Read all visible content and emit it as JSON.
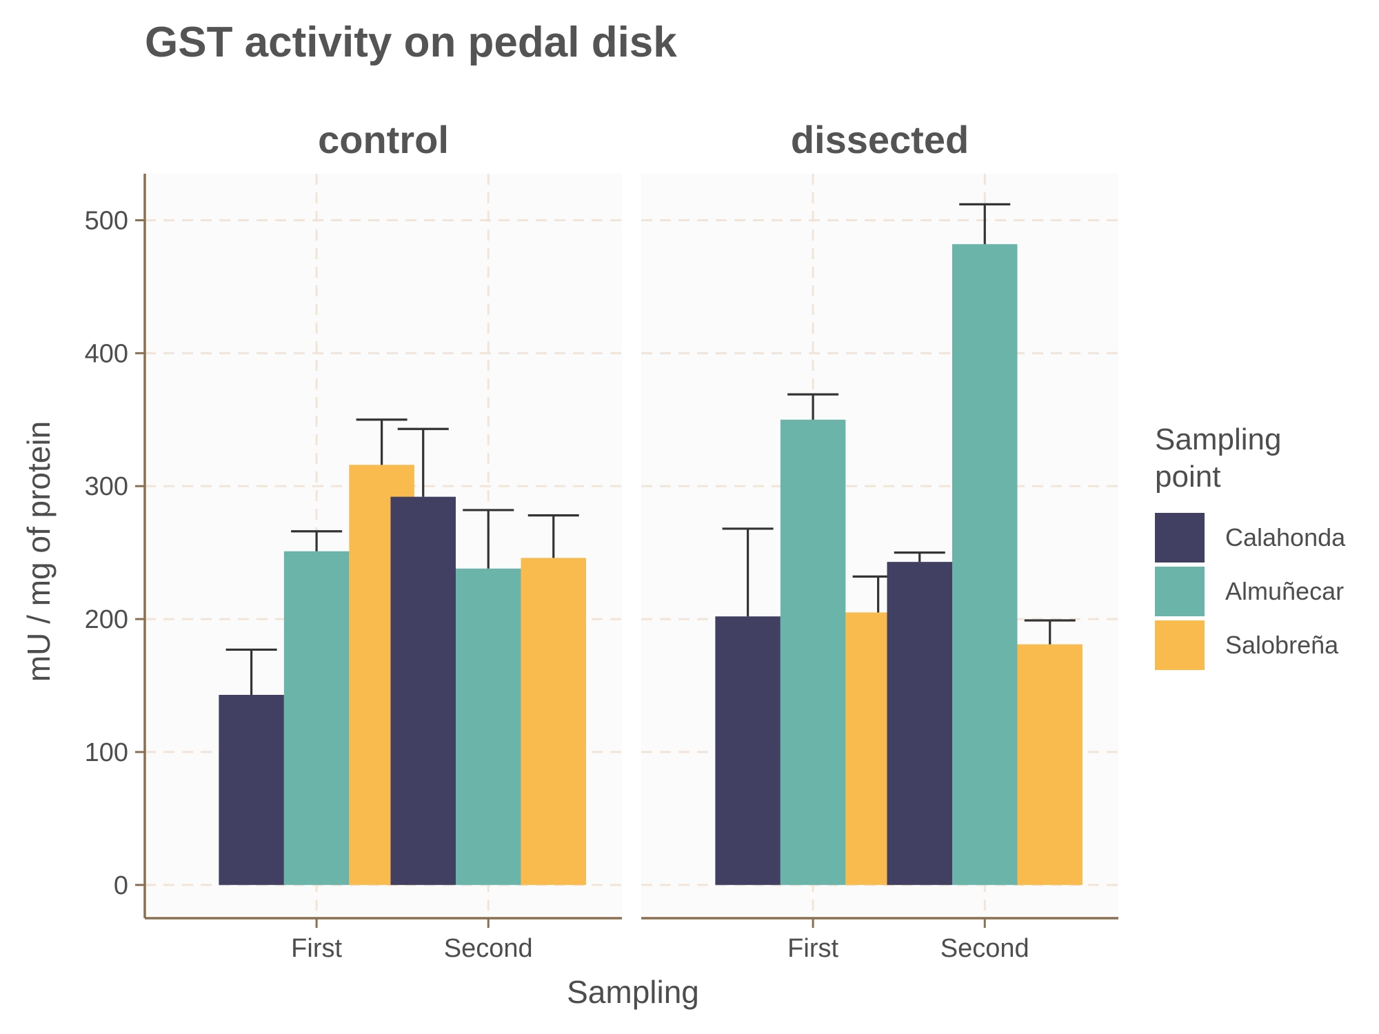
{
  "chart_data": {
    "type": "bar",
    "title": "GST activity on pedal disk",
    "xlabel": "Sampling",
    "ylabel": "mU / mg  of protein",
    "ylim": [
      -25,
      535
    ],
    "yticks": [
      0,
      100,
      200,
      300,
      400,
      500
    ],
    "grid": true,
    "legend": {
      "title_lines": [
        "Sampling",
        "point"
      ],
      "placement": "right"
    },
    "categories": [
      "First",
      "Second"
    ],
    "facets": [
      {
        "name": "control",
        "series": [
          {
            "name": "Calahonda",
            "color": "#413f62",
            "values": [
              143,
              292
            ],
            "error": [
              177,
              343
            ]
          },
          {
            "name": "Almuñecar",
            "color": "#6ab4aa",
            "values": [
              251,
              238
            ],
            "error": [
              266,
              282
            ]
          },
          {
            "name": "Salobreña",
            "color": "#f9bb4d",
            "values": [
              316,
              246
            ],
            "error": [
              350,
              278
            ]
          }
        ]
      },
      {
        "name": "dissected",
        "series": [
          {
            "name": "Calahonda",
            "color": "#413f62",
            "values": [
              202,
              243
            ],
            "error": [
              268,
              250
            ]
          },
          {
            "name": "Almuñecar",
            "color": "#6ab4aa",
            "values": [
              350,
              482
            ],
            "error": [
              369,
              512
            ]
          },
          {
            "name": "Salobreña",
            "color": "#f9bb4d",
            "values": [
              205,
              181
            ],
            "error": [
              232,
              199
            ]
          }
        ]
      }
    ]
  }
}
